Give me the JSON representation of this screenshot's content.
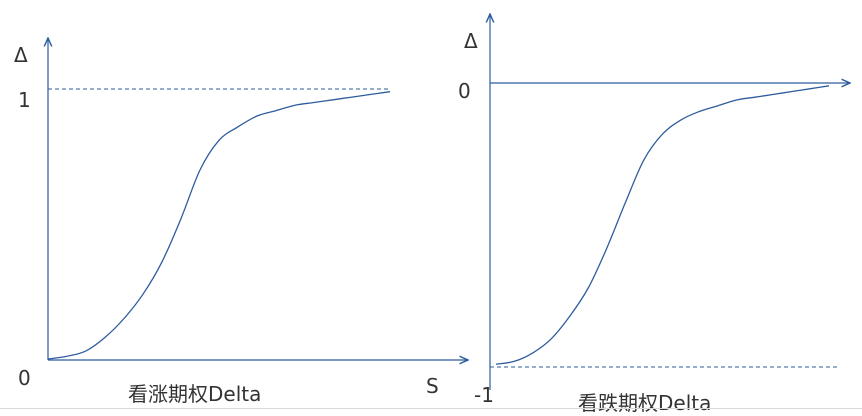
{
  "chart_data": [
    {
      "type": "line",
      "caption": "看涨期权Delta",
      "ylabel": "Δ",
      "xlabel": "S",
      "y_tick_labels": [
        "1",
        "0"
      ],
      "reference_line": {
        "y": 1,
        "style": "dashed"
      },
      "ylim": [
        0,
        1.1
      ],
      "xlim": [
        0,
        1
      ],
      "line_color": "#2e5c9e",
      "series": [
        {
          "x": [
            0.0,
            0.05,
            0.1,
            0.15,
            0.2,
            0.25,
            0.3,
            0.35,
            0.4,
            0.45,
            0.5,
            0.55,
            0.6,
            0.65,
            0.7,
            0.75,
            0.8,
            0.85,
            0.9
          ],
          "values": [
            0.0,
            0.01,
            0.03,
            0.08,
            0.15,
            0.24,
            0.36,
            0.52,
            0.7,
            0.81,
            0.86,
            0.9,
            0.92,
            0.94,
            0.95,
            0.96,
            0.97,
            0.98,
            0.99
          ]
        }
      ]
    },
    {
      "type": "line",
      "caption": "看跌期权Delta",
      "ylabel": "Δ",
      "y_tick_labels": [
        "0",
        "-1"
      ],
      "reference_line": {
        "y": -1,
        "style": "dashed"
      },
      "ylim": [
        -1.05,
        0.2
      ],
      "xlim": [
        0,
        1
      ],
      "line_color": "#2e5c9e",
      "series": [
        {
          "x": [
            0.0,
            0.05,
            0.1,
            0.15,
            0.2,
            0.25,
            0.3,
            0.35,
            0.4,
            0.45,
            0.5,
            0.55,
            0.6,
            0.65,
            0.7,
            0.75,
            0.8,
            0.85,
            0.9
          ],
          "values": [
            -0.99,
            -0.98,
            -0.95,
            -0.9,
            -0.82,
            -0.72,
            -0.58,
            -0.42,
            -0.27,
            -0.18,
            -0.13,
            -0.1,
            -0.08,
            -0.06,
            -0.05,
            -0.04,
            -0.03,
            -0.02,
            -0.01
          ]
        }
      ]
    }
  ]
}
